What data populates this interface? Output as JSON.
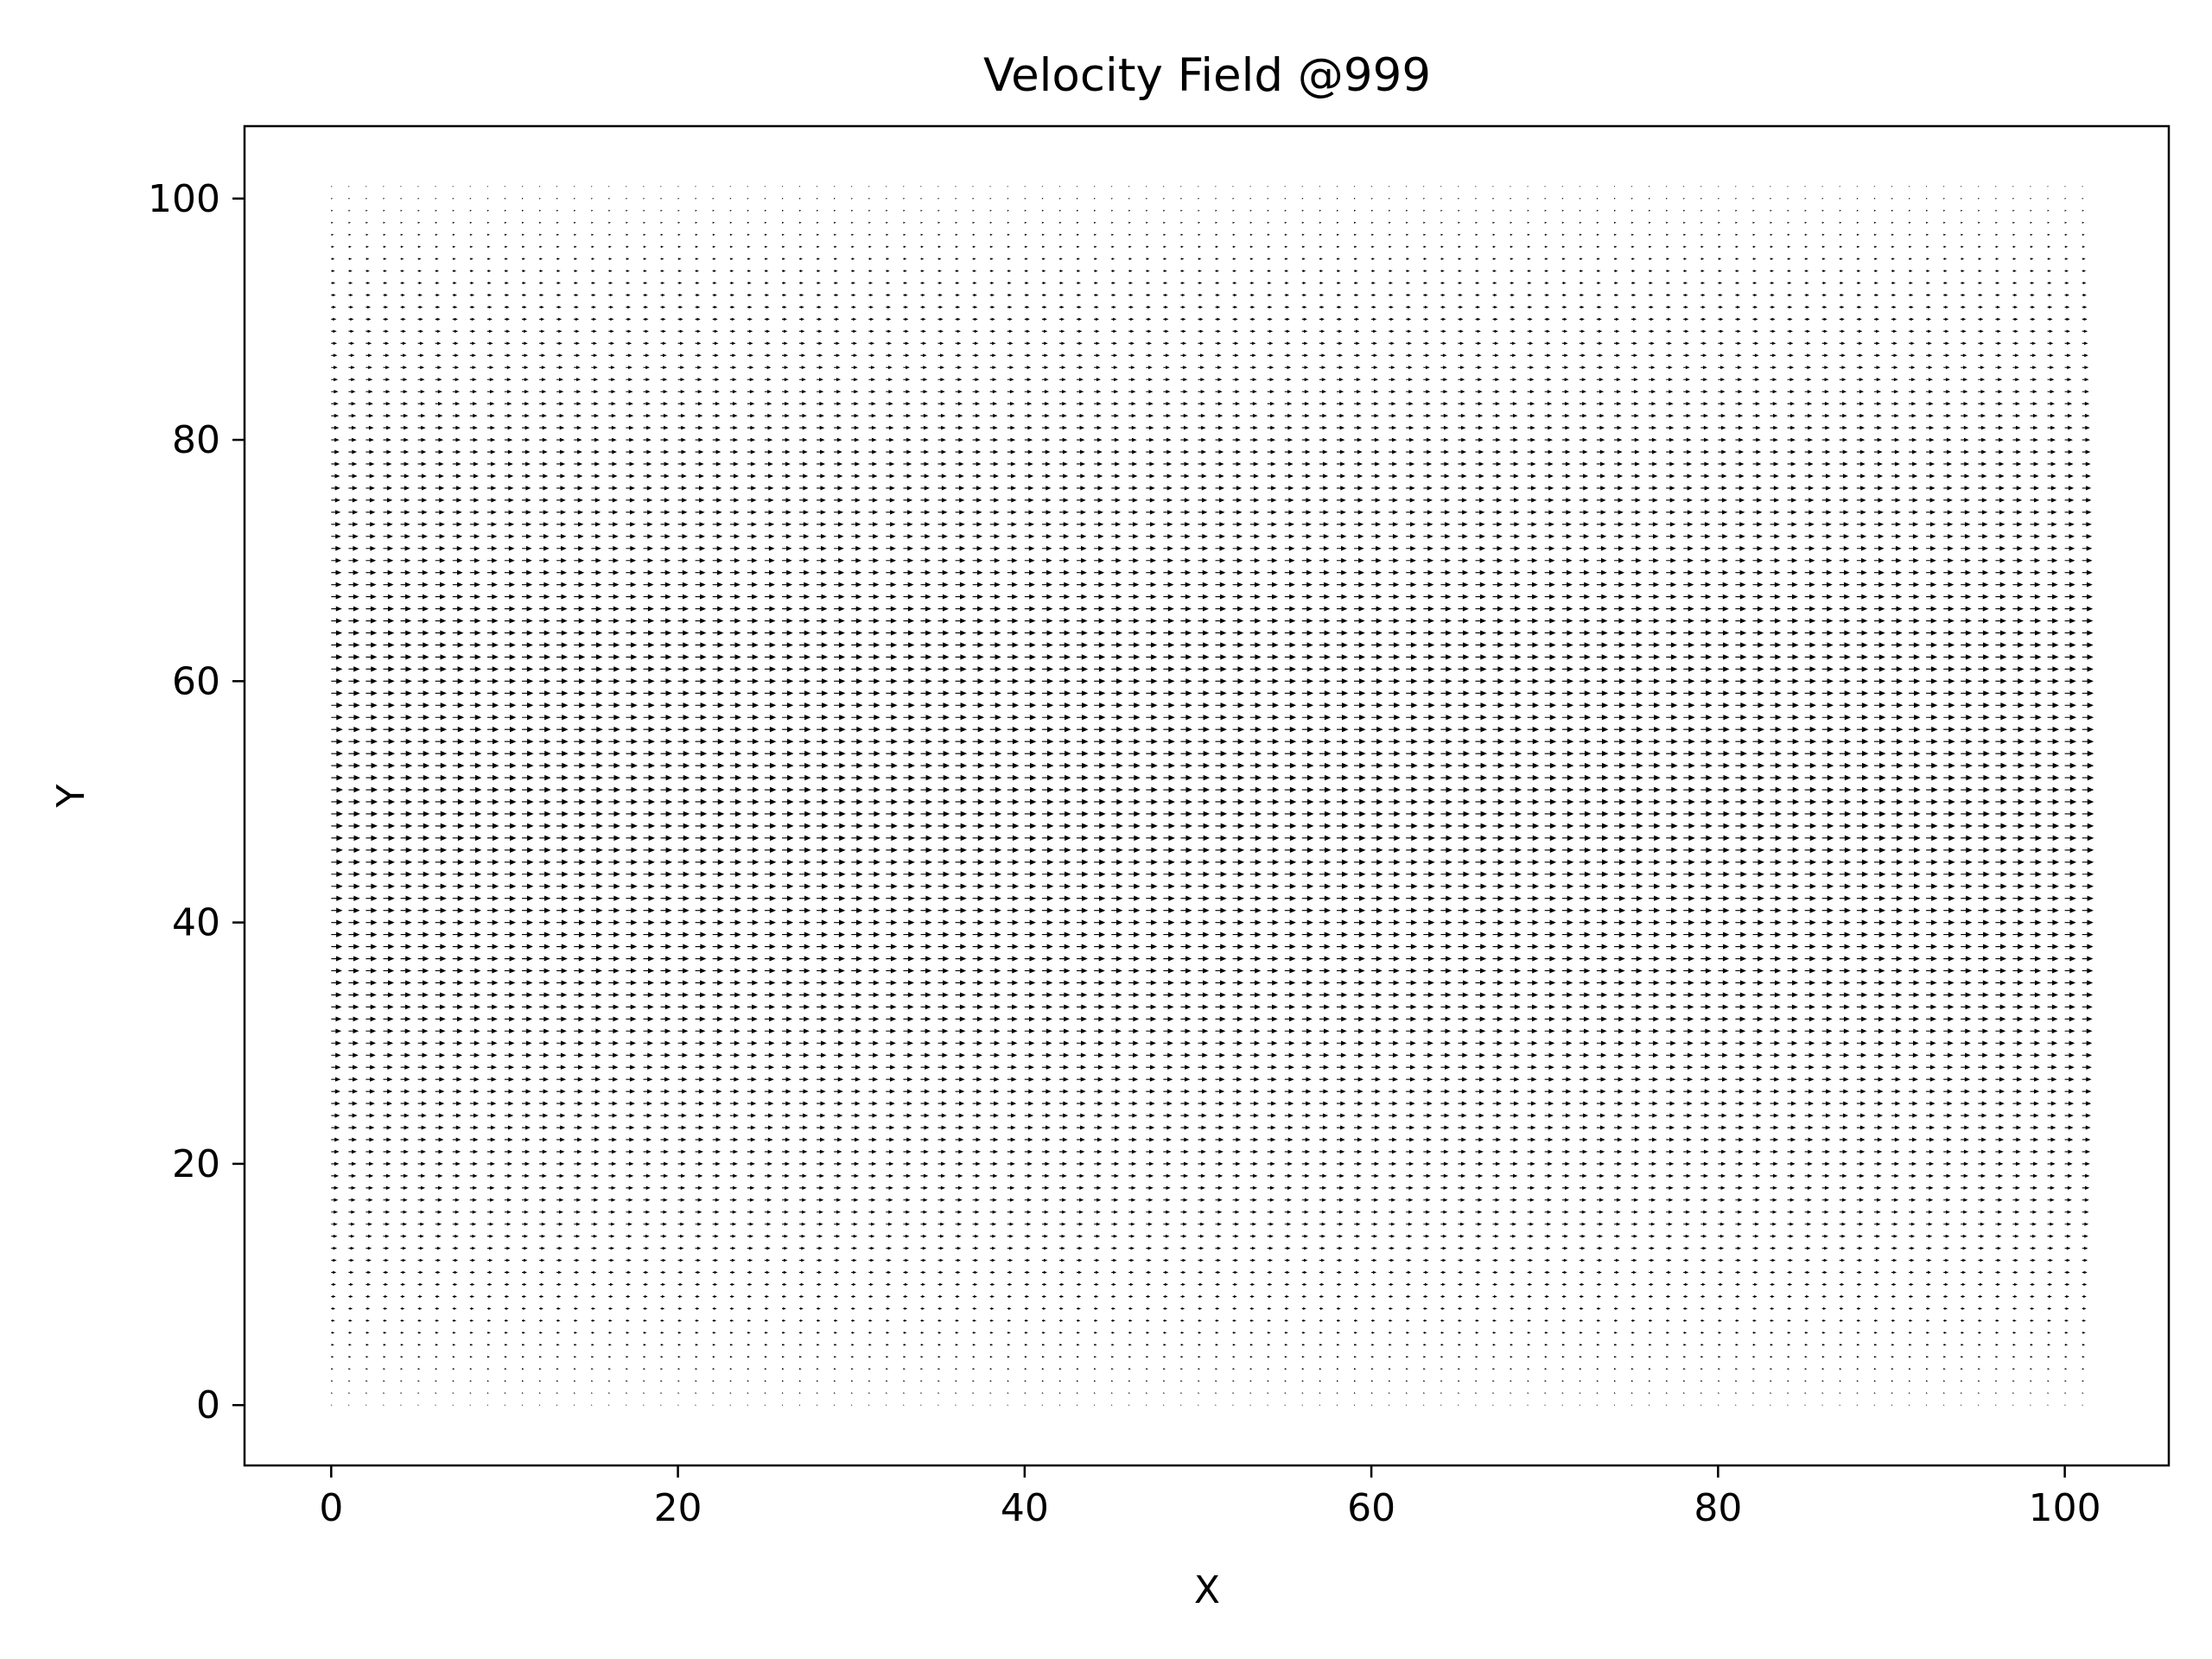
{
  "chart_data": {
    "type": "quiver",
    "title": "Velocity Field @999",
    "xlabel": "X",
    "ylabel": "Y",
    "xlim": [
      -5,
      106
    ],
    "ylim": [
      -5,
      106
    ],
    "xticks": [
      0,
      20,
      40,
      60,
      80,
      100
    ],
    "yticks": [
      0,
      20,
      40,
      60,
      80,
      100
    ],
    "xtick_labels": [
      "0",
      "20",
      "40",
      "60",
      "80",
      "100"
    ],
    "ytick_labels": [
      "0",
      "20",
      "40",
      "60",
      "80",
      "100"
    ],
    "grid": false,
    "grid_x": {
      "start": 0,
      "stop": 101,
      "step": 1
    },
    "grid_y": {
      "start": 0,
      "stop": 101,
      "step": 1
    },
    "u_direction": "+x",
    "v_direction": 0,
    "velocity_profile": "parabolic, zero at y=0 and y=101, maximum at y≈50",
    "u_samples": [
      {
        "y": 0,
        "u": 0.0
      },
      {
        "y": 10,
        "u": 0.35
      },
      {
        "y": 25,
        "u": 0.74
      },
      {
        "y": 50,
        "u": 1.0
      },
      {
        "y": 75,
        "u": 0.74
      },
      {
        "y": 90,
        "u": 0.35
      },
      {
        "y": 101,
        "u": 0.0
      }
    ],
    "arrow_color": "#000000"
  }
}
